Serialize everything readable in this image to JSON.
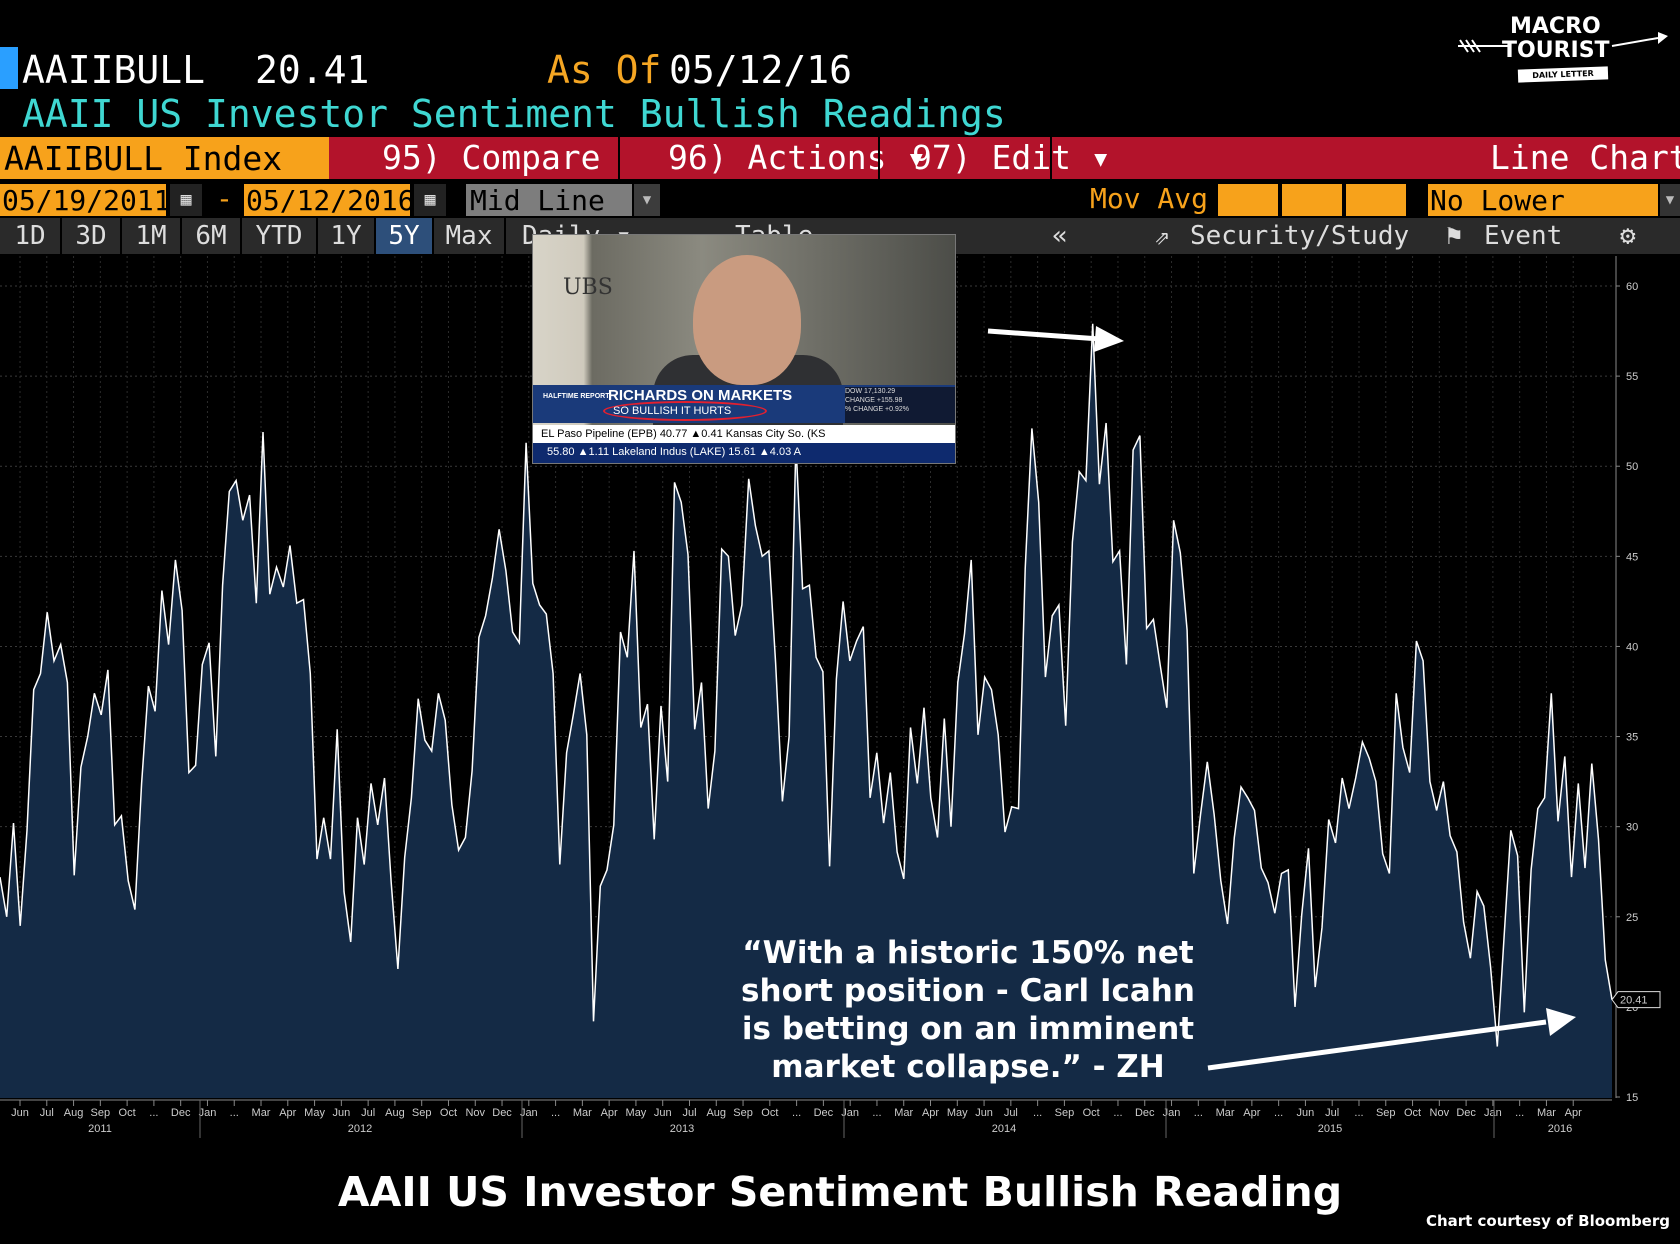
{
  "header": {
    "ticker": "AAIIBULL",
    "last_value": "20.41",
    "as_of_label": "As Of",
    "as_of_date": "05/12/16",
    "subtitle": "AAII US Investor Sentiment Bullish Readings"
  },
  "toolbar": {
    "index_label": "AAIIBULL Index",
    "compare": "95) Compare",
    "actions": "96) Actions ▾",
    "edit": "97) Edit ▾",
    "chart_type": "Line Chart",
    "start_date": "05/19/2011",
    "end_date": "05/12/2016",
    "date_dash": "-",
    "mid_line": "Mid Line",
    "mov_avg": "Mov Avg",
    "lower_chart": "No Lower Chart",
    "ranges": [
      "1D",
      "3D",
      "1M",
      "6M",
      "YTD",
      "1Y",
      "5Y",
      "Max"
    ],
    "active_range": "5Y",
    "frequency": "Daily ▾",
    "table": "Table",
    "collapse": "«",
    "security_study": "Security/Study",
    "event": "Event",
    "settings_icon": "gear-icon"
  },
  "logo": {
    "line1": "MACRO",
    "line2": "TOURIST",
    "tagline": "DAILY LETTER"
  },
  "inset": {
    "brand": "UBS",
    "show": "HALFTIME REPORT",
    "headline": "RICHARDS ON MARKETS",
    "subhead": "SO BULLISH IT HURTS",
    "dow_lines": [
      "DOW 17,130.29",
      "CHANGE +155.98",
      "% CHANGE +0.92%"
    ],
    "ticker1": "EL Paso Pipeline (EPB) 40.77 ▲0.41   Kansas City So. (KS",
    "ticker2": "55.80 ▲1.11   Lakeland Indus (LAKE) 15.61 ▲4.03   A"
  },
  "annotation": {
    "lines": [
      "“With a historic 150% net",
      "short position - Carl Icahn",
      "is betting on an imminent",
      "market collapse.” - ZH"
    ]
  },
  "footer": {
    "title": "AAII US Investor Sentiment Bullish Reading",
    "credit": "Chart courtesy of Bloomberg"
  },
  "colors": {
    "line": "#ffffff",
    "fill": "#142a45",
    "background": "#000000",
    "accent_orange": "#f7a21b",
    "accent_red": "#b3132b",
    "subtitle_cyan": "#3fd7d2"
  },
  "chart_data": {
    "type": "area",
    "series_name": "AAIIBULL",
    "start": "2011-05-19",
    "end": "2016-05-12",
    "frequency": "weekly",
    "ylim": [
      14,
      61
    ],
    "yticks": [
      15,
      20,
      25,
      30,
      35,
      40,
      45,
      50,
      55,
      60
    ],
    "last_value_label": "20.41",
    "xtick_labels": [
      "Jun",
      "Jul",
      "Aug",
      "Sep",
      "Oct",
      "...",
      "Dec",
      "Jan",
      "...",
      "Mar",
      "Apr",
      "May",
      "Jun",
      "Jul",
      "Aug",
      "Sep",
      "Oct",
      "Nov",
      "Dec",
      "Jan",
      "...",
      "Mar",
      "Apr",
      "May",
      "Jun",
      "Jul",
      "Aug",
      "Sep",
      "Oct",
      "...",
      "Dec",
      "Jan",
      "...",
      "Mar",
      "Apr",
      "May",
      "Jun",
      "Jul",
      "...",
      "Sep",
      "Oct",
      "...",
      "Dec",
      "Jan",
      "...",
      "Mar",
      "Apr",
      "...",
      "Jun",
      "Jul",
      "...",
      "Sep",
      "Oct",
      "Nov",
      "Dec",
      "Jan",
      "...",
      "Mar",
      "Apr"
    ],
    "year_labels": [
      "2011",
      "2012",
      "2013",
      "2014",
      "2015",
      "2016"
    ],
    "grid": true,
    "values": [
      27.2,
      25.0,
      30.2,
      24.5,
      29.8,
      37.6,
      38.5,
      41.9,
      39.2,
      40.1,
      38.0,
      27.3,
      33.3,
      35.0,
      37.4,
      36.2,
      38.7,
      30.1,
      30.6,
      27.0,
      25.4,
      32.4,
      37.8,
      36.4,
      43.1,
      40.1,
      44.8,
      42.0,
      33.0,
      33.4,
      39.0,
      40.2,
      33.9,
      43.4,
      48.6,
      49.2,
      47.0,
      48.4,
      42.4,
      51.9,
      42.9,
      44.4,
      43.3,
      45.6,
      42.4,
      42.6,
      38.5,
      28.2,
      30.5,
      28.2,
      35.4,
      26.4,
      23.6,
      30.5,
      27.9,
      32.4,
      30.1,
      32.7,
      26.9,
      22.1,
      28.3,
      31.6,
      37.1,
      34.8,
      34.2,
      37.4,
      35.9,
      31.2,
      28.7,
      29.4,
      33.1,
      40.5,
      41.7,
      43.8,
      46.5,
      44.2,
      40.8,
      40.2,
      51.3,
      43.5,
      42.3,
      41.8,
      38.5,
      27.9,
      34.1,
      36.2,
      38.5,
      35.1,
      19.2,
      26.7,
      27.6,
      30.1,
      40.8,
      39.4,
      45.3,
      35.5,
      36.8,
      29.3,
      36.7,
      32.5,
      49.1,
      48.0,
      45.1,
      35.4,
      38.0,
      31.0,
      34.2,
      45.4,
      45.0,
      40.6,
      42.3,
      49.3,
      46.7,
      45.0,
      45.3,
      39.1,
      31.4,
      35.0,
      51.3,
      43.2,
      43.4,
      39.4,
      38.6,
      27.8,
      38.2,
      42.5,
      39.2,
      40.3,
      41.1,
      31.6,
      34.1,
      30.2,
      33.0,
      28.6,
      27.1,
      35.5,
      32.4,
      36.6,
      31.6,
      29.4,
      36.0,
      30.0,
      38.0,
      40.7,
      44.8,
      35.1,
      38.3,
      37.6,
      35.1,
      29.7,
      31.1,
      31.0,
      44.3,
      52.1,
      48.0,
      38.3,
      41.7,
      42.3,
      35.6,
      45.8,
      49.7,
      49.2,
      57.9,
      49.0,
      52.4,
      44.7,
      45.3,
      39.0,
      50.9,
      51.7,
      41.0,
      41.5,
      39.0,
      36.6,
      47.0,
      45.2,
      40.9,
      27.4,
      30.7,
      33.6,
      30.7,
      27.0,
      24.6,
      29.4,
      32.2,
      31.6,
      30.9,
      27.7,
      26.9,
      25.2,
      27.4,
      27.6,
      20.0,
      25.1,
      28.8,
      21.1,
      24.4,
      30.4,
      29.1,
      32.7,
      31.0,
      32.7,
      34.7,
      33.8,
      32.5,
      28.5,
      27.4,
      37.4,
      34.4,
      33.0,
      40.3,
      39.2,
      32.5,
      30.9,
      32.5,
      29.5,
      28.6,
      24.7,
      22.7,
      26.4,
      25.6,
      22.2,
      17.8,
      23.9,
      29.8,
      28.4,
      19.7,
      27.6,
      31.0,
      31.6,
      37.4,
      30.3,
      33.9,
      27.2,
      32.4,
      27.7,
      33.5,
      29.3,
      22.6,
      20.4
    ]
  }
}
